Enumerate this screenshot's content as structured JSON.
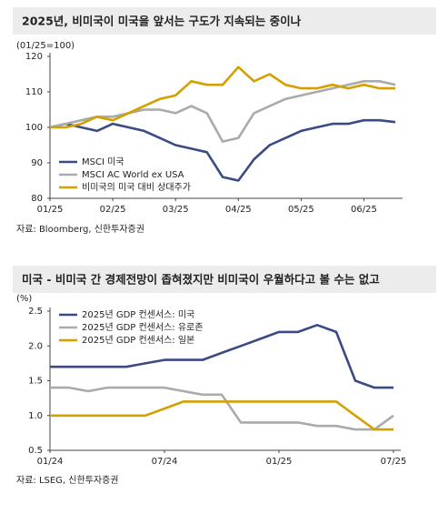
{
  "chart_data": [
    {
      "type": "line",
      "title": "2025년, 비미국이 미국을 앞서는 구도가 지속되는 중이나",
      "unit": "(01/25=100)",
      "categories": [
        "01/25",
        null,
        null,
        null,
        "02/25",
        null,
        null,
        null,
        "03/25",
        null,
        null,
        null,
        "04/25",
        null,
        null,
        null,
        "05/25",
        null,
        null,
        null,
        "06/25",
        null,
        null
      ],
      "series": [
        {
          "name": "MSCI 미국",
          "color": "#3a4a85",
          "values": [
            100,
            101,
            100,
            99,
            101,
            100,
            99,
            97,
            95,
            94,
            93,
            86,
            85,
            91,
            95,
            97,
            99,
            100,
            101,
            101,
            102,
            102,
            101.5
          ]
        },
        {
          "name": "MSCI AC World ex USA",
          "color": "#aaaaaa",
          "values": [
            100,
            101,
            102,
            103,
            103,
            104,
            105,
            105,
            104,
            106,
            104,
            96,
            97,
            104,
            106,
            108,
            109,
            110,
            111,
            112,
            113,
            113,
            112
          ]
        },
        {
          "name": "비미국의 미국 대비 상대주가",
          "color": "#d4a000",
          "values": [
            100,
            100,
            101,
            103,
            102,
            104,
            106,
            108,
            109,
            113,
            112,
            112,
            117,
            113,
            115,
            112,
            111,
            111,
            112,
            111,
            112,
            111,
            111
          ]
        }
      ],
      "ylim": [
        80,
        120
      ],
      "yticks": [
        80,
        90,
        100,
        110,
        120
      ],
      "legend": "lower left",
      "source": "자료: Bloomberg, 신한투자증권"
    },
    {
      "type": "line",
      "title": "미국 - 비미국 간 경제전망이 좁혀졌지만 비미국이 우월하다고 볼 수는 없고",
      "unit": "(%)",
      "categories": [
        "01/24",
        null,
        null,
        null,
        null,
        null,
        "07/24",
        null,
        null,
        null,
        null,
        null,
        "01/25",
        null,
        null,
        null,
        null,
        null,
        "07/25"
      ],
      "series": [
        {
          "name": "2025년 GDP 컨센서스: 미국",
          "color": "#3a4a85",
          "values": [
            1.7,
            1.7,
            1.7,
            1.7,
            1.7,
            1.75,
            1.8,
            1.8,
            1.8,
            1.9,
            2.0,
            2.1,
            2.2,
            2.2,
            2.3,
            2.2,
            1.5,
            1.4,
            1.4
          ]
        },
        {
          "name": "2025년 GDP 컨센서스: 유로존",
          "color": "#aaaaaa",
          "values": [
            1.4,
            1.4,
            1.35,
            1.4,
            1.4,
            1.4,
            1.4,
            1.35,
            1.3,
            1.3,
            0.9,
            0.9,
            0.9,
            0.9,
            0.85,
            0.85,
            0.8,
            0.8,
            1.0
          ]
        },
        {
          "name": "2025년 GDP 컨센서스: 일본",
          "color": "#d4a000",
          "values": [
            1.0,
            1.0,
            1.0,
            1.0,
            1.0,
            1.0,
            1.1,
            1.2,
            1.2,
            1.2,
            1.2,
            1.2,
            1.2,
            1.2,
            1.2,
            1.2,
            1.0,
            0.8,
            0.8
          ]
        }
      ],
      "ylim": [
        0.5,
        2.5
      ],
      "yticks": [
        0.5,
        {
          "value": 1,
          "label": "1.0"
        },
        1.5,
        {
          "value": 2,
          "label": "2.0"
        },
        2.5
      ],
      "legend": "upper left",
      "source": "자료: LSEG, 신한투자증권"
    }
  ]
}
